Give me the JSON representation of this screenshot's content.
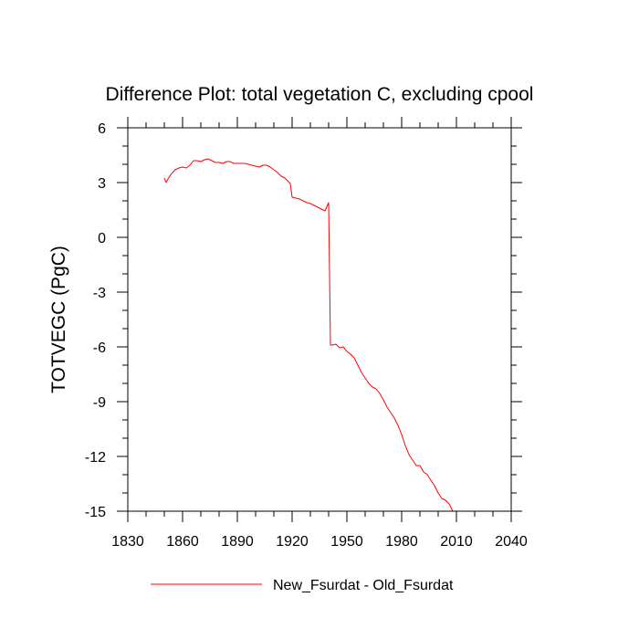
{
  "chart_data": {
    "type": "line",
    "title": "Difference Plot: total vegetation C, excluding cpool",
    "ylabel": "TOTVEGC  (PgC)",
    "xlabel": "",
    "xlim": [
      1830,
      2040
    ],
    "ylim": [
      -15,
      6
    ],
    "x_ticks": [
      1830,
      1860,
      1890,
      1920,
      1950,
      1980,
      2010,
      2040
    ],
    "y_ticks": [
      6,
      3,
      0,
      -3,
      -6,
      -9,
      -12,
      -15
    ],
    "x_tick_labels": [
      "1830",
      "1860",
      "1890",
      "1920",
      "1950",
      "1980",
      "2010",
      "2040"
    ],
    "y_tick_labels": [
      "6",
      "3",
      "0",
      "-3",
      "-6",
      "-9",
      "-12",
      "-15"
    ],
    "grid": false,
    "legend_position": "bottom",
    "series": [
      {
        "name": "New_Fsurdat - Old_Fsurdat",
        "color": "#ff0000",
        "points": [
          [
            1850,
            3.25
          ],
          [
            1851,
            3.0
          ],
          [
            1852,
            3.2
          ],
          [
            1854,
            3.5
          ],
          [
            1856,
            3.7
          ],
          [
            1858,
            3.8
          ],
          [
            1860,
            3.85
          ],
          [
            1862,
            3.8
          ],
          [
            1864,
            3.95
          ],
          [
            1866,
            4.2
          ],
          [
            1868,
            4.2
          ],
          [
            1870,
            4.15
          ],
          [
            1872,
            4.25
          ],
          [
            1874,
            4.3
          ],
          [
            1876,
            4.2
          ],
          [
            1878,
            4.1
          ],
          [
            1880,
            4.1
          ],
          [
            1882,
            4.05
          ],
          [
            1884,
            4.15
          ],
          [
            1886,
            4.15
          ],
          [
            1888,
            4.05
          ],
          [
            1890,
            4.05
          ],
          [
            1892,
            4.05
          ],
          [
            1894,
            4.05
          ],
          [
            1896,
            4.0
          ],
          [
            1898,
            3.95
          ],
          [
            1900,
            3.9
          ],
          [
            1902,
            3.85
          ],
          [
            1904,
            3.95
          ],
          [
            1906,
            3.95
          ],
          [
            1908,
            3.85
          ],
          [
            1910,
            3.7
          ],
          [
            1912,
            3.55
          ],
          [
            1914,
            3.35
          ],
          [
            1916,
            3.25
          ],
          [
            1918,
            3.05
          ],
          [
            1919,
            2.95
          ],
          [
            1920,
            2.2
          ],
          [
            1922,
            2.15
          ],
          [
            1924,
            2.1
          ],
          [
            1926,
            2.0
          ],
          [
            1928,
            1.9
          ],
          [
            1930,
            1.85
          ],
          [
            1932,
            1.75
          ],
          [
            1934,
            1.65
          ],
          [
            1936,
            1.55
          ],
          [
            1938,
            1.45
          ],
          [
            1940,
            1.9
          ],
          [
            1941,
            -5.9
          ],
          [
            1942,
            -5.9
          ],
          [
            1944,
            -5.85
          ],
          [
            1946,
            -6.05
          ],
          [
            1948,
            -6.0
          ],
          [
            1950,
            -6.25
          ],
          [
            1952,
            -6.4
          ],
          [
            1954,
            -6.6
          ],
          [
            1956,
            -7.0
          ],
          [
            1958,
            -7.4
          ],
          [
            1960,
            -7.7
          ],
          [
            1962,
            -8.0
          ],
          [
            1964,
            -8.2
          ],
          [
            1966,
            -8.3
          ],
          [
            1968,
            -8.55
          ],
          [
            1970,
            -8.9
          ],
          [
            1972,
            -9.3
          ],
          [
            1974,
            -9.6
          ],
          [
            1976,
            -9.9
          ],
          [
            1978,
            -10.3
          ],
          [
            1980,
            -10.8
          ],
          [
            1982,
            -11.4
          ],
          [
            1984,
            -11.9
          ],
          [
            1986,
            -12.2
          ],
          [
            1988,
            -12.5
          ],
          [
            1990,
            -12.5
          ],
          [
            1992,
            -12.85
          ],
          [
            1994,
            -13.0
          ],
          [
            1996,
            -13.3
          ],
          [
            1998,
            -13.6
          ],
          [
            2000,
            -14.0
          ],
          [
            2002,
            -14.3
          ],
          [
            2004,
            -14.4
          ],
          [
            2006,
            -14.6
          ],
          [
            2008,
            -15.0
          ]
        ]
      }
    ]
  }
}
